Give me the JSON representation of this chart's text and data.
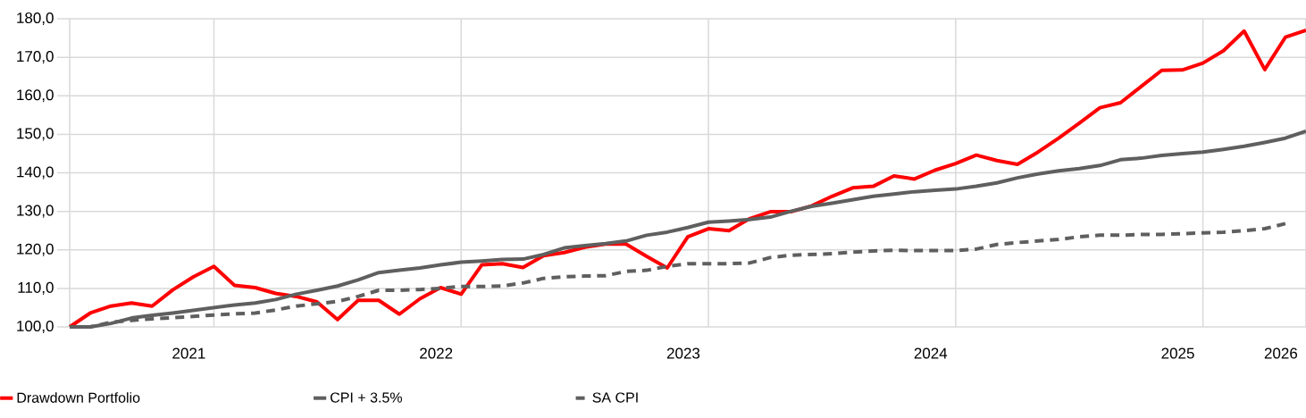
{
  "chart_data": {
    "type": "line",
    "categories": [
      null,
      null,
      null,
      null,
      null,
      null,
      "2021",
      null,
      null,
      null,
      null,
      null,
      null,
      null,
      null,
      null,
      null,
      null,
      "2022",
      null,
      null,
      null,
      null,
      null,
      null,
      null,
      null,
      null,
      null,
      null,
      "2023",
      null,
      null,
      null,
      null,
      null,
      null,
      null,
      null,
      null,
      null,
      null,
      "2024",
      null,
      null,
      null,
      null,
      null,
      null,
      null,
      null,
      null,
      null,
      null,
      "2025",
      null,
      null,
      null,
      null,
      "2026",
      null
    ],
    "ylim": [
      100,
      180
    ],
    "yticks": [
      {
        "value": 100,
        "label": "100,0"
      },
      {
        "value": 110,
        "label": "110,0"
      },
      {
        "value": 120,
        "label": "120,0"
      },
      {
        "value": 130,
        "label": "130,0"
      },
      {
        "value": 140,
        "label": "140,0"
      },
      {
        "value": 150,
        "label": "150,0"
      },
      {
        "value": 160,
        "label": "160,0"
      },
      {
        "value": 170,
        "label": "170,0"
      },
      {
        "value": 180,
        "label": "180,0"
      }
    ],
    "grid": true,
    "legend": "bottom",
    "series": [
      {
        "name": "Drawdown Portfolio",
        "color": "#ff0000",
        "line_style": "solid",
        "values": [
          100,
          103.6,
          105.4,
          106.2,
          105.4,
          109.6,
          113.0,
          115.7,
          110.8,
          110.2,
          108.7,
          107.9,
          106.5,
          101.9,
          106.9,
          106.9,
          103.3,
          107.3,
          110.2,
          108.5,
          116.1,
          116.4,
          115.4,
          118.5,
          119.3,
          120.7,
          121.5,
          121.5,
          118.3,
          115.3,
          123.4,
          125.5,
          125.0,
          128.1,
          129.9,
          129.9,
          131.4,
          133.9,
          136.1,
          136.5,
          139.2,
          138.4,
          140.7,
          142.4,
          144.6,
          143.2,
          142.2,
          145.4,
          149.0,
          152.9,
          156.9,
          158.2,
          162.4,
          166.6,
          166.7,
          168.5,
          171.7,
          176.8,
          166.8,
          175.2,
          177.0
        ]
      },
      {
        "name": "CPI + 3.5%",
        "color": "#5f5f5f",
        "line_style": "solid",
        "values": [
          100,
          100.0,
          100.9,
          102.3,
          103.0,
          103.6,
          104.3,
          105.0,
          105.7,
          106.2,
          107.1,
          108.5,
          109.5,
          110.6,
          112.2,
          114.1,
          114.7,
          115.3,
          116.1,
          116.8,
          117.1,
          117.5,
          117.6,
          118.8,
          120.5,
          121.1,
          121.6,
          122.3,
          123.8,
          124.6,
          125.8,
          127.2,
          127.5,
          127.9,
          128.5,
          130.0,
          131.3,
          132.1,
          133.0,
          133.9,
          134.5,
          135.1,
          135.5,
          135.8,
          136.5,
          137.4,
          138.7,
          139.7,
          140.5,
          141.1,
          141.9,
          143.4,
          143.8,
          144.5,
          145.0,
          145.4,
          146.1,
          146.9,
          147.9,
          149.0,
          150.8
        ]
      },
      {
        "name": "SA CPI",
        "color": "#5f5f5f",
        "line_style": "dashed",
        "values": [
          100,
          100,
          101.2,
          101.7,
          102.1,
          102.4,
          102.7,
          103.1,
          103.4,
          103.6,
          104.4,
          105.4,
          106.0,
          106.6,
          107.9,
          109.5,
          109.5,
          109.7,
          110.0,
          110.5,
          110.5,
          110.6,
          111.4,
          112.6,
          113.0,
          113.2,
          113.3,
          114.4,
          114.7,
          115.7,
          116.4,
          116.4,
          116.4,
          116.6,
          118.0,
          118.6,
          118.8,
          119.0,
          119.4,
          119.7,
          119.9,
          119.8,
          119.8,
          119.8,
          120.2,
          121.4,
          121.9,
          122.3,
          122.7,
          123.4,
          123.8,
          123.8,
          124.0,
          124.0,
          124.2,
          124.4,
          124.6,
          125.0,
          125.5,
          126.8,
          null
        ]
      }
    ]
  }
}
